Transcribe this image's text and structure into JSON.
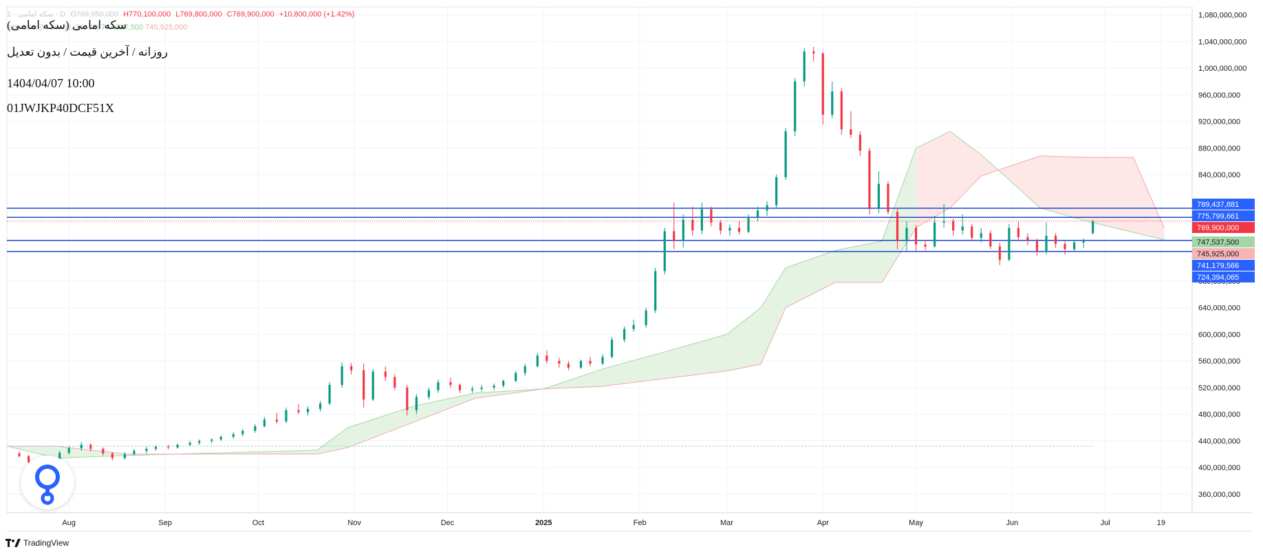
{
  "legend": {
    "symbol_row": "1 · سکه امامی · D",
    "open": "O769,950,000",
    "high": "H770,100,000",
    "low": "L769,800,000",
    "close": "C769,900,000",
    "change": "+10,800,000 (+1.42%)",
    "ichimoku_label": "Ichimoku (9, 26, 52, 26, 26)",
    "ichimoku_v1": "747,537,500",
    "ichimoku_v2": "745,925,000"
  },
  "title": {
    "name": "سکه امامی (سکه امامی)",
    "subtitle": "روزانه / آخرین قیمت / بدون تعدیل",
    "datetime": "1404/04/07 10:00",
    "code": "01JWJKP40DCF51X"
  },
  "footer": {
    "brand": "TradingView"
  },
  "colors": {
    "up": "#089981",
    "down": "#f23645",
    "hline": "#1848cc",
    "tag_blue": "#2962ff",
    "tag_red": "#f23645",
    "tag_green": "#a5d6a7",
    "tag_pink": "#f8b4b4",
    "cloud_green": "#e2f2e0",
    "cloud_red": "#fde4e4"
  },
  "chart_data": {
    "type": "candlestick",
    "y_axis": {
      "ticks": [
        "360,000,000",
        "400,000,000",
        "440,000,000",
        "480,000,000",
        "520,000,000",
        "560,000,000",
        "600,000,000",
        "640,000,000",
        "680,000,000",
        "840,000,000",
        "880,000,000",
        "920,000,000",
        "960,000,000",
        "1,000,000,000",
        "1,040,000,000",
        "1,080,000,000"
      ],
      "range": [
        332000000,
        1092000000
      ]
    },
    "x_axis": {
      "ticks": [
        "Aug",
        "Sep",
        "Oct",
        "Nov",
        "Dec",
        "2025",
        "Feb",
        "Mar",
        "Apr",
        "May",
        "Jun",
        "Jul",
        "19"
      ]
    },
    "horizontal_lines": [
      789437881,
      775799661,
      741179566,
      724394065
    ],
    "price_tags": [
      {
        "label": "789,437,881",
        "value": 789437881,
        "style": "blue"
      },
      {
        "label": "775,799,661",
        "value": 775799661,
        "style": "blue"
      },
      {
        "label": "769,900,000",
        "value": 769900000,
        "style": "red"
      },
      {
        "label": "747,537,500",
        "value": 747537500,
        "style": "green"
      },
      {
        "label": "745,925,000",
        "value": 745925000,
        "style": "pink"
      },
      {
        "label": "741,179,566",
        "value": 741179566,
        "style": "blue"
      },
      {
        "label": "724,394,065",
        "value": 724394065,
        "style": "blue"
      }
    ],
    "candles": [
      {
        "x": "2024-07-16",
        "o": 421000000,
        "h": 424000000,
        "l": 415000000,
        "c": 417000000
      },
      {
        "x": "2024-07-19",
        "o": 417000000,
        "h": 419000000,
        "l": 405000000,
        "c": 408000000
      },
      {
        "x": "2024-07-22",
        "o": 408000000,
        "h": 412000000,
        "l": 400000000,
        "c": 404000000
      },
      {
        "x": "2024-07-25",
        "o": 404000000,
        "h": 414000000,
        "l": 402000000,
        "c": 412000000
      },
      {
        "x": "2024-07-29",
        "o": 412000000,
        "h": 425000000,
        "l": 410000000,
        "c": 422000000
      },
      {
        "x": "2024-08-01",
        "o": 422000000,
        "h": 432000000,
        "l": 419000000,
        "c": 429000000
      },
      {
        "x": "2024-08-05",
        "o": 429000000,
        "h": 438000000,
        "l": 425000000,
        "c": 434000000
      },
      {
        "x": "2024-08-08",
        "o": 434000000,
        "h": 436000000,
        "l": 424000000,
        "c": 428000000
      },
      {
        "x": "2024-08-12",
        "o": 428000000,
        "h": 430000000,
        "l": 418000000,
        "c": 421000000
      },
      {
        "x": "2024-08-15",
        "o": 421000000,
        "h": 423000000,
        "l": 411000000,
        "c": 414000000
      },
      {
        "x": "2024-08-19",
        "o": 414000000,
        "h": 423000000,
        "l": 412000000,
        "c": 420000000
      },
      {
        "x": "2024-08-22",
        "o": 420000000,
        "h": 428000000,
        "l": 418000000,
        "c": 425000000
      },
      {
        "x": "2024-08-26",
        "o": 425000000,
        "h": 431000000,
        "l": 421000000,
        "c": 428000000
      },
      {
        "x": "2024-08-29",
        "o": 428000000,
        "h": 433000000,
        "l": 425000000,
        "c": 431000000
      },
      {
        "x": "2024-09-02",
        "o": 431000000,
        "h": 434000000,
        "l": 427000000,
        "c": 430000000
      },
      {
        "x": "2024-09-05",
        "o": 430000000,
        "h": 436000000,
        "l": 428000000,
        "c": 434000000
      },
      {
        "x": "2024-09-09",
        "o": 434000000,
        "h": 440000000,
        "l": 432000000,
        "c": 437000000
      },
      {
        "x": "2024-09-12",
        "o": 437000000,
        "h": 442000000,
        "l": 434000000,
        "c": 440000000
      },
      {
        "x": "2024-09-16",
        "o": 440000000,
        "h": 444000000,
        "l": 436000000,
        "c": 442000000
      },
      {
        "x": "2024-09-19",
        "o": 442000000,
        "h": 448000000,
        "l": 440000000,
        "c": 446000000
      },
      {
        "x": "2024-09-23",
        "o": 446000000,
        "h": 453000000,
        "l": 443000000,
        "c": 450000000
      },
      {
        "x": "2024-09-26",
        "o": 450000000,
        "h": 458000000,
        "l": 447000000,
        "c": 455000000
      },
      {
        "x": "2024-09-30",
        "o": 455000000,
        "h": 465000000,
        "l": 452000000,
        "c": 462000000
      },
      {
        "x": "2024-10-03",
        "o": 462000000,
        "h": 476000000,
        "l": 460000000,
        "c": 472000000
      },
      {
        "x": "2024-10-07",
        "o": 472000000,
        "h": 482000000,
        "l": 466000000,
        "c": 469000000
      },
      {
        "x": "2024-10-10",
        "o": 469000000,
        "h": 490000000,
        "l": 467000000,
        "c": 486000000
      },
      {
        "x": "2024-10-14",
        "o": 486000000,
        "h": 495000000,
        "l": 480000000,
        "c": 483000000
      },
      {
        "x": "2024-10-17",
        "o": 483000000,
        "h": 492000000,
        "l": 478000000,
        "c": 488000000
      },
      {
        "x": "2024-10-21",
        "o": 488000000,
        "h": 500000000,
        "l": 484000000,
        "c": 496000000
      },
      {
        "x": "2024-10-24",
        "o": 496000000,
        "h": 528000000,
        "l": 494000000,
        "c": 524000000
      },
      {
        "x": "2024-10-28",
        "o": 524000000,
        "h": 558000000,
        "l": 520000000,
        "c": 552000000
      },
      {
        "x": "2024-10-31",
        "o": 552000000,
        "h": 557000000,
        "l": 540000000,
        "c": 546000000
      },
      {
        "x": "2024-11-04",
        "o": 546000000,
        "h": 556000000,
        "l": 490000000,
        "c": 502000000
      },
      {
        "x": "2024-11-07",
        "o": 502000000,
        "h": 548000000,
        "l": 500000000,
        "c": 544000000
      },
      {
        "x": "2024-11-11",
        "o": 544000000,
        "h": 552000000,
        "l": 530000000,
        "c": 536000000
      },
      {
        "x": "2024-11-14",
        "o": 536000000,
        "h": 540000000,
        "l": 516000000,
        "c": 520000000
      },
      {
        "x": "2024-11-18",
        "o": 520000000,
        "h": 524000000,
        "l": 478000000,
        "c": 486000000
      },
      {
        "x": "2024-11-21",
        "o": 486000000,
        "h": 510000000,
        "l": 480000000,
        "c": 506000000
      },
      {
        "x": "2024-11-25",
        "o": 506000000,
        "h": 520000000,
        "l": 502000000,
        "c": 516000000
      },
      {
        "x": "2024-11-28",
        "o": 516000000,
        "h": 532000000,
        "l": 512000000,
        "c": 528000000
      },
      {
        "x": "2024-12-02",
        "o": 528000000,
        "h": 535000000,
        "l": 520000000,
        "c": 524000000
      },
      {
        "x": "2024-12-05",
        "o": 524000000,
        "h": 526000000,
        "l": 512000000,
        "c": 516000000
      },
      {
        "x": "2024-12-09",
        "o": 516000000,
        "h": 522000000,
        "l": 512000000,
        "c": 518000000
      },
      {
        "x": "2024-12-12",
        "o": 518000000,
        "h": 524000000,
        "l": 514000000,
        "c": 520000000
      },
      {
        "x": "2024-12-16",
        "o": 520000000,
        "h": 526000000,
        "l": 516000000,
        "c": 523000000
      },
      {
        "x": "2024-12-19",
        "o": 523000000,
        "h": 532000000,
        "l": 520000000,
        "c": 530000000
      },
      {
        "x": "2024-12-23",
        "o": 530000000,
        "h": 545000000,
        "l": 528000000,
        "c": 542000000
      },
      {
        "x": "2024-12-26",
        "o": 542000000,
        "h": 556000000,
        "l": 538000000,
        "c": 552000000
      },
      {
        "x": "2024-12-30",
        "o": 552000000,
        "h": 572000000,
        "l": 550000000,
        "c": 568000000
      },
      {
        "x": "2025-01-02",
        "o": 568000000,
        "h": 576000000,
        "l": 556000000,
        "c": 560000000
      },
      {
        "x": "2025-01-06",
        "o": 560000000,
        "h": 565000000,
        "l": 550000000,
        "c": 556000000
      },
      {
        "x": "2025-01-09",
        "o": 556000000,
        "h": 560000000,
        "l": 546000000,
        "c": 550000000
      },
      {
        "x": "2025-01-13",
        "o": 550000000,
        "h": 562000000,
        "l": 548000000,
        "c": 560000000
      },
      {
        "x": "2025-01-16",
        "o": 560000000,
        "h": 566000000,
        "l": 552000000,
        "c": 556000000
      },
      {
        "x": "2025-01-20",
        "o": 556000000,
        "h": 570000000,
        "l": 554000000,
        "c": 566000000
      },
      {
        "x": "2025-01-23",
        "o": 566000000,
        "h": 596000000,
        "l": 564000000,
        "c": 592000000
      },
      {
        "x": "2025-01-27",
        "o": 592000000,
        "h": 612000000,
        "l": 588000000,
        "c": 608000000
      },
      {
        "x": "2025-01-30",
        "o": 608000000,
        "h": 622000000,
        "l": 604000000,
        "c": 614000000
      },
      {
        "x": "2025-02-03",
        "o": 614000000,
        "h": 640000000,
        "l": 610000000,
        "c": 636000000
      },
      {
        "x": "2025-02-06",
        "o": 636000000,
        "h": 700000000,
        "l": 632000000,
        "c": 695000000
      },
      {
        "x": "2025-02-09",
        "o": 695000000,
        "h": 760000000,
        "l": 690000000,
        "c": 755000000
      },
      {
        "x": "2025-02-12",
        "o": 755000000,
        "h": 798000000,
        "l": 728000000,
        "c": 740000000
      },
      {
        "x": "2025-02-15",
        "o": 740000000,
        "h": 780000000,
        "l": 730000000,
        "c": 772000000
      },
      {
        "x": "2025-02-18",
        "o": 772000000,
        "h": 792000000,
        "l": 748000000,
        "c": 756000000
      },
      {
        "x": "2025-02-21",
        "o": 756000000,
        "h": 798000000,
        "l": 750000000,
        "c": 788000000
      },
      {
        "x": "2025-02-24",
        "o": 788000000,
        "h": 792000000,
        "l": 762000000,
        "c": 768000000
      },
      {
        "x": "2025-02-27",
        "o": 768000000,
        "h": 772000000,
        "l": 750000000,
        "c": 756000000
      },
      {
        "x": "2025-03-02",
        "o": 756000000,
        "h": 765000000,
        "l": 748000000,
        "c": 760000000
      },
      {
        "x": "2025-03-05",
        "o": 760000000,
        "h": 770000000,
        "l": 750000000,
        "c": 754000000
      },
      {
        "x": "2025-03-08",
        "o": 754000000,
        "h": 780000000,
        "l": 752000000,
        "c": 776000000
      },
      {
        "x": "2025-03-11",
        "o": 776000000,
        "h": 792000000,
        "l": 770000000,
        "c": 786000000
      },
      {
        "x": "2025-03-14",
        "o": 786000000,
        "h": 800000000,
        "l": 778000000,
        "c": 794000000
      },
      {
        "x": "2025-03-17",
        "o": 794000000,
        "h": 840000000,
        "l": 790000000,
        "c": 836000000
      },
      {
        "x": "2025-03-20",
        "o": 836000000,
        "h": 910000000,
        "l": 832000000,
        "c": 905000000
      },
      {
        "x": "2025-03-23",
        "o": 905000000,
        "h": 985000000,
        "l": 898000000,
        "c": 980000000
      },
      {
        "x": "2025-03-26",
        "o": 980000000,
        "h": 1030000000,
        "l": 972000000,
        "c": 1025000000
      },
      {
        "x": "2025-03-29",
        "o": 1025000000,
        "h": 1032000000,
        "l": 1010000000,
        "c": 1022000000
      },
      {
        "x": "2025-04-01",
        "o": 1022000000,
        "h": 1024000000,
        "l": 915000000,
        "c": 930000000
      },
      {
        "x": "2025-04-04",
        "o": 930000000,
        "h": 980000000,
        "l": 925000000,
        "c": 965000000
      },
      {
        "x": "2025-04-07",
        "o": 965000000,
        "h": 970000000,
        "l": 900000000,
        "c": 908000000
      },
      {
        "x": "2025-04-10",
        "o": 908000000,
        "h": 935000000,
        "l": 895000000,
        "c": 900000000
      },
      {
        "x": "2025-04-13",
        "o": 900000000,
        "h": 905000000,
        "l": 868000000,
        "c": 876000000
      },
      {
        "x": "2025-04-16",
        "o": 876000000,
        "h": 880000000,
        "l": 780000000,
        "c": 790000000
      },
      {
        "x": "2025-04-19",
        "o": 790000000,
        "h": 845000000,
        "l": 782000000,
        "c": 826000000
      },
      {
        "x": "2025-04-22",
        "o": 826000000,
        "h": 830000000,
        "l": 780000000,
        "c": 784000000
      },
      {
        "x": "2025-04-25",
        "o": 784000000,
        "h": 790000000,
        "l": 728000000,
        "c": 740000000
      },
      {
        "x": "2025-04-28",
        "o": 740000000,
        "h": 770000000,
        "l": 725000000,
        "c": 760000000
      },
      {
        "x": "2025-05-01",
        "o": 760000000,
        "h": 764000000,
        "l": 725000000,
        "c": 735000000
      },
      {
        "x": "2025-05-04",
        "o": 735000000,
        "h": 742000000,
        "l": 726000000,
        "c": 732000000
      },
      {
        "x": "2025-05-07",
        "o": 732000000,
        "h": 778000000,
        "l": 730000000,
        "c": 768000000
      },
      {
        "x": "2025-05-10",
        "o": 768000000,
        "h": 796000000,
        "l": 760000000,
        "c": 770000000
      },
      {
        "x": "2025-05-13",
        "o": 770000000,
        "h": 774000000,
        "l": 748000000,
        "c": 756000000
      },
      {
        "x": "2025-05-16",
        "o": 756000000,
        "h": 780000000,
        "l": 750000000,
        "c": 762000000
      },
      {
        "x": "2025-05-19",
        "o": 762000000,
        "h": 766000000,
        "l": 740000000,
        "c": 745000000
      },
      {
        "x": "2025-05-22",
        "o": 745000000,
        "h": 760000000,
        "l": 738000000,
        "c": 752000000
      },
      {
        "x": "2025-05-25",
        "o": 752000000,
        "h": 756000000,
        "l": 728000000,
        "c": 732000000
      },
      {
        "x": "2025-05-28",
        "o": 732000000,
        "h": 738000000,
        "l": 704000000,
        "c": 712000000
      },
      {
        "x": "2025-05-31",
        "o": 712000000,
        "h": 766000000,
        "l": 710000000,
        "c": 760000000
      },
      {
        "x": "2025-06-03",
        "o": 760000000,
        "h": 770000000,
        "l": 740000000,
        "c": 746000000
      },
      {
        "x": "2025-06-06",
        "o": 746000000,
        "h": 752000000,
        "l": 734000000,
        "c": 740000000
      },
      {
        "x": "2025-06-09",
        "o": 740000000,
        "h": 744000000,
        "l": 718000000,
        "c": 724000000
      },
      {
        "x": "2025-06-12",
        "o": 724000000,
        "h": 768000000,
        "l": 720000000,
        "c": 748000000
      },
      {
        "x": "2025-06-15",
        "o": 748000000,
        "h": 752000000,
        "l": 730000000,
        "c": 736000000
      },
      {
        "x": "2025-06-18",
        "o": 736000000,
        "h": 740000000,
        "l": 720000000,
        "c": 728000000
      },
      {
        "x": "2025-06-21",
        "o": 728000000,
        "h": 742000000,
        "l": 724000000,
        "c": 738000000
      },
      {
        "x": "2025-06-24",
        "o": 738000000,
        "h": 744000000,
        "l": 730000000,
        "c": 740000000
      },
      {
        "x": "2025-06-27",
        "o": 752000000,
        "h": 772000000,
        "l": 750000000,
        "c": 769900000
      }
    ]
  }
}
